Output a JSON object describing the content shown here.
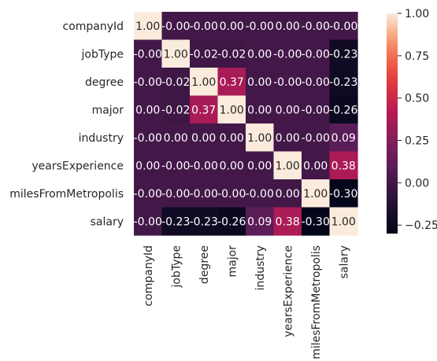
{
  "chart_data": {
    "type": "heatmap",
    "rows": [
      "companyId",
      "jobType",
      "degree",
      "major",
      "industry",
      "yearsExperience",
      "milesFromMetropolis",
      "salary"
    ],
    "columns": [
      "companyId",
      "jobType",
      "degree",
      "major",
      "industry",
      "yearsExperience",
      "milesFromMetropolis",
      "salary"
    ],
    "values": [
      [
        1.0,
        -0.0,
        -0.0,
        0.0,
        -0.0,
        0.0,
        -0.0,
        -0.0
      ],
      [
        -0.0,
        1.0,
        -0.02,
        -0.02,
        0.0,
        -0.0,
        -0.0,
        -0.23
      ],
      [
        -0.0,
        -0.02,
        1.0,
        0.37,
        0.0,
        -0.0,
        -0.0,
        -0.23
      ],
      [
        0.0,
        -0.02,
        0.37,
        1.0,
        0.0,
        0.0,
        -0.0,
        -0.26
      ],
      [
        -0.0,
        0.0,
        0.0,
        0.0,
        1.0,
        0.0,
        -0.0,
        0.09
      ],
      [
        0.0,
        -0.0,
        -0.0,
        0.0,
        0.0,
        1.0,
        0.0,
        0.38
      ],
      [
        -0.0,
        -0.0,
        -0.0,
        -0.0,
        -0.0,
        0.0,
        1.0,
        -0.3
      ],
      [
        -0.0,
        -0.23,
        -0.23,
        -0.26,
        0.09,
        0.38,
        -0.3,
        1.0
      ]
    ],
    "annotations": [
      [
        "1.00",
        "-0.00",
        "-0.00",
        "0.00",
        "-0.00",
        "0.00",
        "-0.00",
        "-0.00"
      ],
      [
        "-0.00",
        "1.00",
        "-0.02",
        "-0.02",
        "0.00",
        "-0.00",
        "-0.00",
        "-0.23"
      ],
      [
        "-0.00",
        "-0.02",
        "1.00",
        "0.37",
        "0.00",
        "-0.00",
        "-0.00",
        "-0.23"
      ],
      [
        "0.00",
        "-0.02",
        "0.37",
        "1.00",
        "0.00",
        "0.00",
        "-0.00",
        "-0.26"
      ],
      [
        "-0.00",
        "0.00",
        "0.00",
        "0.00",
        "1.00",
        "0.00",
        "-0.00",
        "0.09"
      ],
      [
        "0.00",
        "-0.00",
        "-0.00",
        "0.00",
        "0.00",
        "1.00",
        "0.00",
        "0.38"
      ],
      [
        "-0.00",
        "-0.00",
        "-0.00",
        "-0.00",
        "-0.00",
        "0.00",
        "1.00",
        "-0.30"
      ],
      [
        "-0.00",
        "-0.23",
        "-0.23",
        "-0.26",
        "0.09",
        "0.38",
        "-0.30",
        "1.00"
      ]
    ],
    "colorbar": {
      "range": [
        -0.3,
        1.0
      ],
      "ticks": [
        -0.25,
        0.0,
        0.25,
        0.5,
        0.75,
        1.0
      ],
      "tick_labels": [
        "−0.25",
        "0.00",
        "0.25",
        "0.50",
        "0.75",
        "1.00"
      ]
    },
    "colormap": "rocket",
    "square_cells": true
  }
}
